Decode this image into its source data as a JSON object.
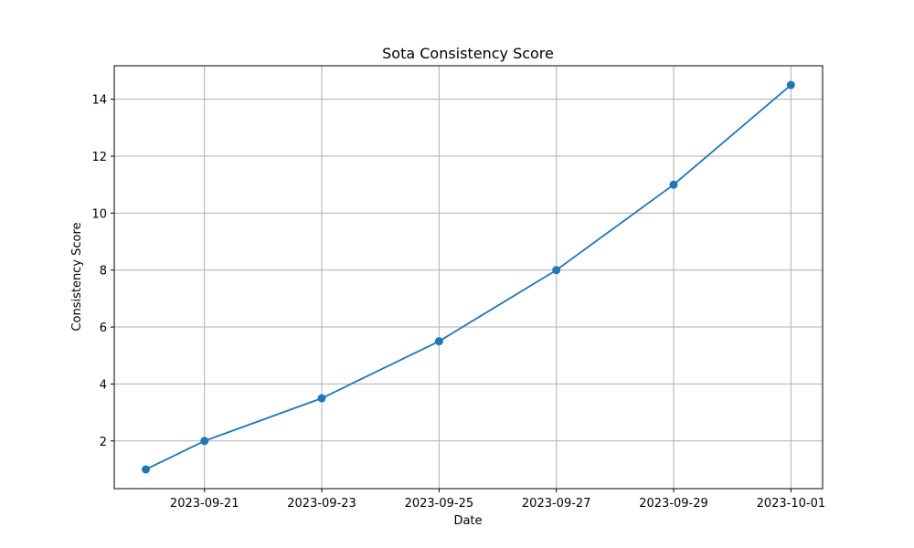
{
  "chart_data": {
    "type": "line",
    "title": "Sota Consistency Score",
    "xlabel": "Date",
    "ylabel": "Consistency Score",
    "x": [
      "2023-09-20",
      "2023-09-21",
      "2023-09-23",
      "2023-09-25",
      "2023-09-27",
      "2023-09-29",
      "2023-10-01"
    ],
    "series": [
      {
        "values": [
          1,
          2,
          3.5,
          5.5,
          8,
          11,
          14.5
        ],
        "color": "#1f77b4",
        "marker": "circle"
      }
    ],
    "xticks": [
      "2023-09-21",
      "2023-09-23",
      "2023-09-25",
      "2023-09-27",
      "2023-09-29",
      "2023-10-01"
    ],
    "yticks": [
      2,
      4,
      6,
      8,
      10,
      12,
      14
    ],
    "xlim": [
      "2023-09-19T11:04:48",
      "2023-10-01T12:57:36"
    ],
    "ylim": [
      0.325,
      15.175
    ],
    "grid": true
  }
}
